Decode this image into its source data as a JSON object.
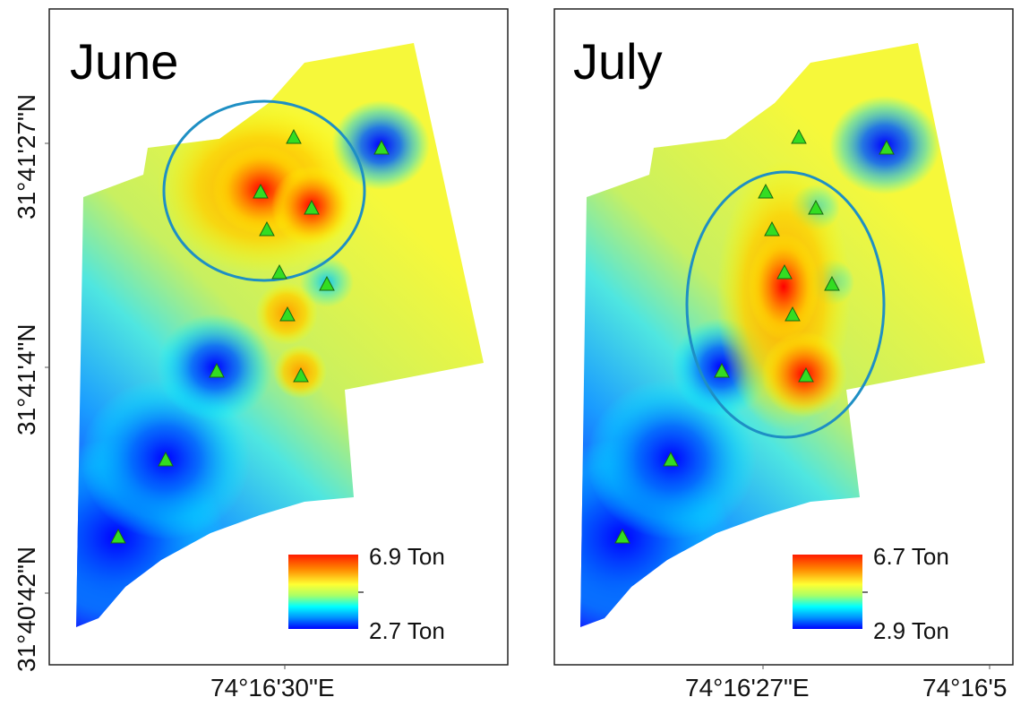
{
  "map_left": {
    "title": "June",
    "y_labels": [
      "31°41'27\"N",
      "31°41'4\"N",
      "31°40'42\"N"
    ],
    "x_label": "74°16'30\"E",
    "legend": {
      "max": "6.9 Ton",
      "min": "2.7 Ton"
    }
  },
  "map_right": {
    "title": "July",
    "x_labels": [
      "74°16'27\"E",
      "74°16'5"
    ],
    "legend": {
      "max": "6.7 Ton",
      "min": "2.9 Ton"
    }
  },
  "colors": {
    "frame": "#222222",
    "circle": "#1e8fc4",
    "station": "#33dd22",
    "ramp": [
      "#ff0000",
      "#ff8a00",
      "#ffff00",
      "#aaff66",
      "#00ffff",
      "#0080ff",
      "#0000ff"
    ]
  },
  "icons": {
    "station": "triangle-marker-icon"
  }
}
